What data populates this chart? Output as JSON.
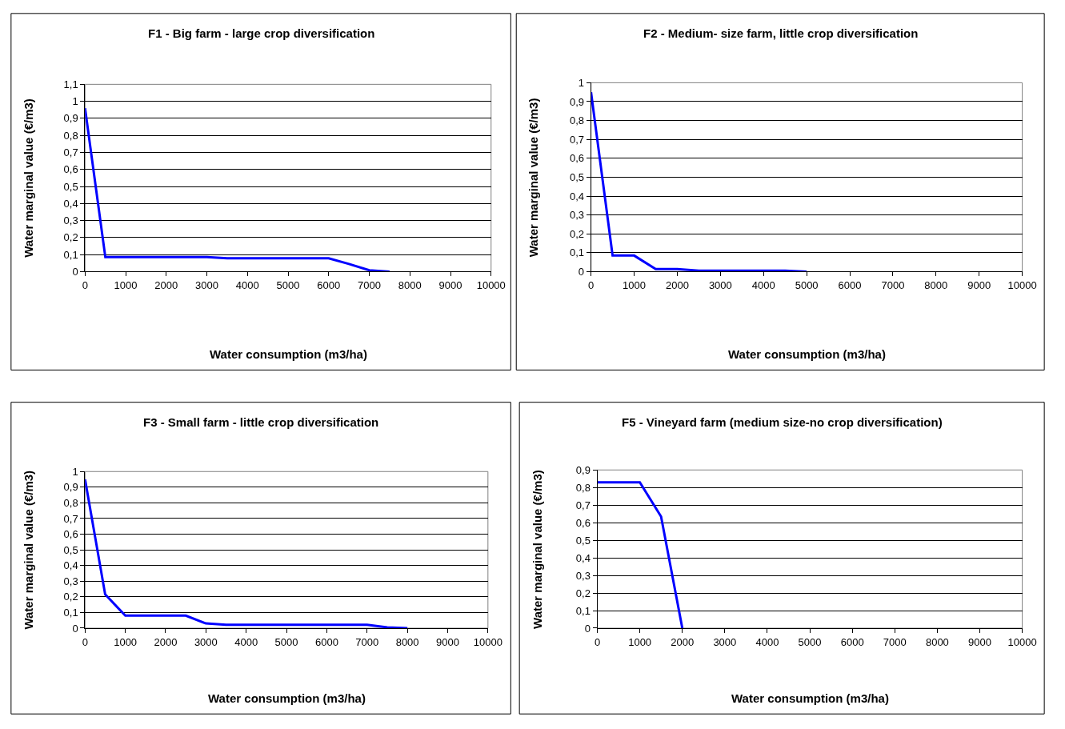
{
  "chart_data": [
    {
      "type": "line",
      "title": "F1 - Big farm - large crop diversification",
      "xlabel": "Water consumption (m3/ha)",
      "ylabel": "Water marginal value (€/m3)",
      "x": [
        0,
        500,
        1000,
        1500,
        2000,
        2500,
        3000,
        3500,
        4000,
        4500,
        5000,
        5500,
        6000,
        6500,
        7000,
        7500
      ],
      "series": [
        {
          "color": "#0000ff",
          "values": [
            0.96,
            0.085,
            0.085,
            0.085,
            0.085,
            0.085,
            0.085,
            0.078,
            0.078,
            0.078,
            0.078,
            0.078,
            0.078,
            0.045,
            0.008,
            0
          ]
        }
      ],
      "xlim": [
        0,
        10000
      ],
      "xticks": [
        0,
        1000,
        2000,
        3000,
        4000,
        5000,
        6000,
        7000,
        8000,
        9000,
        10000
      ],
      "ylim": [
        0,
        1.1
      ],
      "yticks": [
        0,
        {
          "value": 0.1,
          "label": "0,1"
        },
        {
          "value": 0.2,
          "label": "0,2"
        },
        {
          "value": 0.3,
          "label": "0,3"
        },
        {
          "value": 0.4,
          "label": "0,4"
        },
        {
          "value": 0.5,
          "label": "0,5"
        },
        {
          "value": 0.6,
          "label": "0,6"
        },
        {
          "value": 0.7,
          "label": "0,7"
        },
        {
          "value": 0.8,
          "label": "0,8"
        },
        {
          "value": 0.9,
          "label": "0,9"
        },
        1,
        {
          "value": 1.1,
          "label": "1,1"
        }
      ],
      "grid": "y",
      "marker": "none",
      "line_style": "solid"
    },
    {
      "type": "line",
      "title": "F2 - Medium- size farm, little crop diversification",
      "xlabel": "Water consumption (m3/ha)",
      "ylabel": "Water marginal value (€/m3)",
      "x": [
        0,
        500,
        1000,
        1500,
        2000,
        2500,
        3000,
        3500,
        4000,
        4500,
        5000
      ],
      "series": [
        {
          "color": "#0000ff",
          "values": [
            0.95,
            0.085,
            0.085,
            0.013,
            0.013,
            0.005,
            0.005,
            0.005,
            0.005,
            0.005,
            0
          ]
        }
      ],
      "xlim": [
        0,
        10000
      ],
      "xticks": [
        0,
        1000,
        2000,
        3000,
        4000,
        5000,
        6000,
        7000,
        8000,
        9000,
        10000
      ],
      "ylim": [
        0,
        1
      ],
      "yticks": [
        0,
        {
          "value": 0.1,
          "label": "0,1"
        },
        {
          "value": 0.2,
          "label": "0,2"
        },
        {
          "value": 0.3,
          "label": "0,3"
        },
        {
          "value": 0.4,
          "label": "0,4"
        },
        {
          "value": 0.5,
          "label": "0,5"
        },
        {
          "value": 0.6,
          "label": "0,6"
        },
        {
          "value": 0.7,
          "label": "0,7"
        },
        {
          "value": 0.8,
          "label": "0,8"
        },
        {
          "value": 0.9,
          "label": "0,9"
        },
        1
      ],
      "grid": "y",
      "marker": "none",
      "line_style": "solid"
    },
    {
      "type": "line",
      "title": "F3 - Small farm - little crop diversification",
      "xlabel": "Water consumption (m3/ha)",
      "ylabel": "Water marginal value (€/m3)",
      "x": [
        0,
        500,
        1000,
        1500,
        2000,
        2500,
        3000,
        3500,
        4000,
        4500,
        5000,
        5500,
        6000,
        6500,
        7000,
        7500,
        8000
      ],
      "series": [
        {
          "color": "#0000ff",
          "values": [
            0.95,
            0.215,
            0.08,
            0.08,
            0.08,
            0.08,
            0.03,
            0.022,
            0.022,
            0.022,
            0.022,
            0.022,
            0.022,
            0.022,
            0.022,
            0.005,
            0
          ]
        }
      ],
      "xlim": [
        0,
        10000
      ],
      "xticks": [
        0,
        1000,
        2000,
        3000,
        4000,
        5000,
        6000,
        7000,
        8000,
        9000,
        10000
      ],
      "ylim": [
        0,
        1
      ],
      "yticks": [
        0,
        {
          "value": 0.1,
          "label": "0,1"
        },
        {
          "value": 0.2,
          "label": "0,2"
        },
        {
          "value": 0.3,
          "label": "0,3"
        },
        {
          "value": 0.4,
          "label": "0,4"
        },
        {
          "value": 0.5,
          "label": "0,5"
        },
        {
          "value": 0.6,
          "label": "0,6"
        },
        {
          "value": 0.7,
          "label": "0,7"
        },
        {
          "value": 0.8,
          "label": "0,8"
        },
        {
          "value": 0.9,
          "label": "0,9"
        },
        1
      ],
      "grid": "y",
      "marker": "none",
      "line_style": "solid"
    },
    {
      "type": "line",
      "title": "F5 - Vineyard farm (medium size-no crop diversification)",
      "xlabel": "Water consumption (m3/ha)",
      "ylabel": "Water marginal value (€/m3)",
      "x": [
        0,
        500,
        1000,
        1500,
        2000
      ],
      "series": [
        {
          "color": "#0000ff",
          "values": [
            0.83,
            0.83,
            0.83,
            0.635,
            0
          ]
        }
      ],
      "xlim": [
        0,
        10000
      ],
      "xticks": [
        0,
        1000,
        2000,
        3000,
        4000,
        5000,
        6000,
        7000,
        8000,
        9000,
        10000
      ],
      "ylim": [
        0,
        0.9
      ],
      "yticks": [
        0,
        {
          "value": 0.1,
          "label": "0,1"
        },
        {
          "value": 0.2,
          "label": "0,2"
        },
        {
          "value": 0.3,
          "label": "0,3"
        },
        {
          "value": 0.4,
          "label": "0,4"
        },
        {
          "value": 0.5,
          "label": "0,5"
        },
        {
          "value": 0.6,
          "label": "0,6"
        },
        {
          "value": 0.7,
          "label": "0,7"
        },
        {
          "value": 0.8,
          "label": "0,8"
        },
        {
          "value": 0.9,
          "label": "0,9"
        }
      ],
      "grid": "y",
      "marker": "none",
      "line_style": "solid"
    }
  ]
}
